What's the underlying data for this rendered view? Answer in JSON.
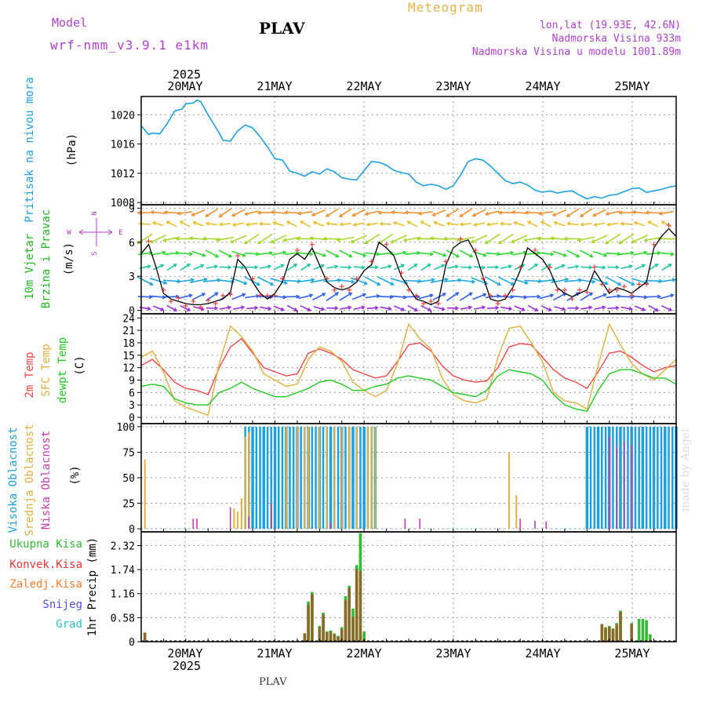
{
  "header": {
    "model_label": "Model",
    "model_run": "wrf-nmm_v3.9.1 e1km",
    "station": "PLAV",
    "app_title": "Meteogram",
    "lonlat": "lon,lat (19.93E, 42.6N)",
    "elevation": "Nadmorska Visina 933m",
    "elevation_model": "Nadmorska Visina u modelu 1001.89m"
  },
  "footer": {
    "station": "PLAV"
  },
  "credit": "made by Angel",
  "colors": {
    "pressure": "#1ea0e0",
    "wind_label": "#22b422",
    "temp2m": "#f04848",
    "sfc_temp": "#e0b040",
    "dewpt": "#22c822",
    "cloud_high": "#1ea0e0",
    "cloud_mid": "#e0b040",
    "cloud_low": "#c83cb4",
    "precip_total": "#33bb33",
    "precip_conv": "#ee3333",
    "precip_frz": "#f08030",
    "snow": "#5050e0",
    "hail": "#30c0c0",
    "axis_magenta": "#b040d0"
  },
  "time_axis": {
    "top_year": "2025",
    "bottom_year": "2025",
    "days": [
      "20MAY",
      "21MAY",
      "22MAY",
      "23MAY",
      "24MAY",
      "25MAY"
    ]
  },
  "chart_data": [
    {
      "id": "pressure",
      "type": "line",
      "ylabel": "Pritisak na nivou mora",
      "unit": "(hPa)",
      "yticks": [
        1008,
        1012,
        1016,
        1020
      ],
      "ylim": [
        1007.7,
        1022.5
      ],
      "x": [
        0,
        2,
        3,
        5,
        7,
        9,
        11,
        12,
        14,
        15,
        16,
        18,
        21,
        22,
        24,
        26,
        28,
        30,
        32,
        34,
        36,
        38,
        40,
        42,
        44,
        46,
        48,
        50,
        52,
        54,
        56,
        58,
        60,
        62,
        64,
        66,
        68,
        70,
        72,
        74,
        76,
        78,
        80,
        82,
        84,
        86,
        88,
        90,
        92,
        94,
        96,
        98,
        100,
        102,
        104,
        106,
        108,
        110,
        112,
        114,
        116,
        118,
        120,
        122,
        124,
        126,
        128,
        130,
        132,
        134,
        136,
        138,
        140,
        142,
        144
      ],
      "values": [
        1018.5,
        1017.3,
        1017.5,
        1017.4,
        1018.8,
        1020.5,
        1020.8,
        1021.5,
        1021.6,
        1022.0,
        1021.8,
        1020.0,
        1017.5,
        1016.5,
        1016.4,
        1017.8,
        1018.6,
        1018.2,
        1017.0,
        1015.6,
        1014.0,
        1013.8,
        1012.3,
        1012.0,
        1011.6,
        1012.2,
        1011.9,
        1012.6,
        1012.2,
        1011.4,
        1011.2,
        1011.1,
        1012.4,
        1013.6,
        1013.5,
        1013.1,
        1012.4,
        1012.1,
        1011.9,
        1010.8,
        1010.3,
        1010.5,
        1010.3,
        1009.8,
        1010.3,
        1011.8,
        1013.6,
        1014.0,
        1013.8,
        1013.0,
        1012.0,
        1011.0,
        1010.6,
        1010.8,
        1010.4,
        1009.7,
        1009.4,
        1009.6,
        1009.3,
        1009.5,
        1009.6,
        1009.0,
        1008.5,
        1008.8,
        1008.6,
        1009.0,
        1009.1,
        1009.5,
        1009.9,
        1010.0,
        1009.4,
        1009.6,
        1009.8,
        1010.1,
        1010.3
      ]
    },
    {
      "id": "wind",
      "type": "line",
      "ylabel_1": "10m Vjetar",
      "ylabel_2": "Brzina i Pravac",
      "unit": "(m/s)",
      "compass": [
        "N",
        "S",
        "W",
        "E"
      ],
      "yticks": [
        0,
        3,
        6,
        9
      ],
      "ylim": [
        -0.3,
        9.3
      ],
      "x": [
        0,
        2,
        4,
        6,
        8,
        10,
        12,
        14,
        16,
        18,
        20,
        22,
        24,
        26,
        28,
        30,
        32,
        34,
        36,
        38,
        40,
        42,
        44,
        46,
        48,
        50,
        52,
        54,
        56,
        58,
        60,
        62,
        64,
        66,
        68,
        70,
        72,
        74,
        76,
        78,
        80,
        82,
        84,
        86,
        88,
        90,
        92,
        94,
        96,
        98,
        100,
        102,
        104,
        106,
        108,
        110,
        112,
        114,
        116,
        118,
        120,
        122,
        124,
        126,
        128,
        130,
        132,
        134,
        136,
        138,
        140,
        142,
        144
      ],
      "speed": [
        5.0,
        5.8,
        3.8,
        1.5,
        1.0,
        0.8,
        0.6,
        0.5,
        0.5,
        0.6,
        0.8,
        1.0,
        1.6,
        4.5,
        3.8,
        2.5,
        1.5,
        1.0,
        1.5,
        2.5,
        4.5,
        5.0,
        4.5,
        5.5,
        4.0,
        2.5,
        2.0,
        1.8,
        2.0,
        2.5,
        3.5,
        4.0,
        6.0,
        5.5,
        4.8,
        3.0,
        2.0,
        1.0,
        0.8,
        0.5,
        0.8,
        4.0,
        5.5,
        6.0,
        6.2,
        5.0,
        3.0,
        1.0,
        0.8,
        1.0,
        2.0,
        3.5,
        5.5,
        5.0,
        4.5,
        3.5,
        2.0,
        1.5,
        1.2,
        1.5,
        1.8,
        3.5,
        2.5,
        1.5,
        2.0,
        1.8,
        1.5,
        2.0,
        2.5,
        5.5,
        6.5,
        7.2,
        6.5
      ]
    },
    {
      "id": "temperature",
      "type": "line",
      "ylabel_1": "2m Temp",
      "ylabel_2": "SFC Temp",
      "ylabel_3": "dewpt Temp",
      "unit": "(C)",
      "yticks": [
        0,
        3,
        6,
        9,
        12,
        15,
        18,
        21,
        24
      ],
      "ylim": [
        -1.5,
        25
      ],
      "x": [
        0,
        3,
        6,
        9,
        12,
        15,
        18,
        21,
        24,
        27,
        30,
        33,
        36,
        39,
        42,
        45,
        48,
        51,
        54,
        57,
        60,
        63,
        66,
        69,
        72,
        75,
        78,
        81,
        84,
        87,
        90,
        93,
        96,
        99,
        102,
        105,
        108,
        111,
        114,
        117,
        120,
        123,
        126,
        129,
        132,
        135,
        138,
        141,
        144
      ],
      "series": [
        {
          "name": "2m Temp",
          "values": [
            12.5,
            14.0,
            11.5,
            8.5,
            7.0,
            6.5,
            5.5,
            12.0,
            17.0,
            19.0,
            15.5,
            12.0,
            11.0,
            10.0,
            10.5,
            15.5,
            16.5,
            15.5,
            14.0,
            11.5,
            10.5,
            9.5,
            10.0,
            13.5,
            17.5,
            18.0,
            16.0,
            12.5,
            10.0,
            9.0,
            8.5,
            8.8,
            12.0,
            17.0,
            17.8,
            17.5,
            14.5,
            11.5,
            9.5,
            8.5,
            7.0,
            11.0,
            15.5,
            16.0,
            14.5,
            12.5,
            11.0,
            12.0,
            12.5
          ]
        },
        {
          "name": "SFC Temp",
          "values": [
            14.5,
            16.0,
            11.0,
            4.0,
            2.5,
            1.5,
            0.5,
            13.0,
            22.0,
            19.5,
            16.0,
            10.5,
            9.0,
            7.5,
            8.0,
            14.0,
            17.0,
            16.0,
            13.5,
            8.5,
            6.5,
            5.0,
            6.5,
            13.0,
            22.5,
            19.0,
            16.5,
            9.5,
            5.5,
            4.0,
            3.5,
            4.5,
            14.5,
            21.5,
            22.0,
            18.0,
            13.5,
            6.0,
            4.0,
            3.5,
            2.0,
            12.5,
            22.5,
            17.5,
            13.0,
            10.5,
            9.0,
            11.5,
            14.0
          ]
        },
        {
          "name": "dewpt Temp",
          "values": [
            7.5,
            8.0,
            7.5,
            4.5,
            3.5,
            3.0,
            3.0,
            6.0,
            7.0,
            8.5,
            7.0,
            6.0,
            5.0,
            5.0,
            6.0,
            7.0,
            8.5,
            9.0,
            8.0,
            6.5,
            6.5,
            7.5,
            8.0,
            9.5,
            10.0,
            9.5,
            9.0,
            7.5,
            6.0,
            5.5,
            5.0,
            6.5,
            10.0,
            11.5,
            11.0,
            10.5,
            9.0,
            5.5,
            3.0,
            2.0,
            1.5,
            6.5,
            10.5,
            11.5,
            11.5,
            10.5,
            9.5,
            9.5,
            8.0
          ]
        }
      ]
    },
    {
      "id": "cloud",
      "type": "bar",
      "ylabel_1": "Visoka Oblacnost",
      "ylabel_2": "Srednja Oblacnost",
      "ylabel_3": "Niska Oblacnost",
      "unit": "(%)",
      "yticks": [
        0,
        25,
        50,
        75,
        100
      ],
      "ylim": [
        -3,
        103
      ],
      "high_full_ranges": [
        [
          28,
          63
        ],
        [
          120,
          144
        ]
      ],
      "mid_x": [
        1,
        25,
        26,
        27,
        28,
        29,
        39,
        42,
        44,
        45,
        48,
        50,
        52,
        54,
        56,
        58,
        61,
        62,
        63,
        99,
        101
      ],
      "mid_values": [
        68,
        20,
        17,
        30,
        90,
        95,
        100,
        100,
        100,
        100,
        100,
        100,
        100,
        100,
        100,
        100,
        100,
        100,
        100,
        75,
        33
      ],
      "low_x": [
        14,
        15,
        24,
        29,
        35,
        51,
        71,
        75,
        102,
        106,
        109,
        126,
        128,
        130,
        132
      ],
      "low_values": [
        10,
        10,
        21,
        12,
        25,
        6,
        10,
        10,
        10,
        8,
        7,
        90,
        80,
        86,
        82
      ]
    },
    {
      "id": "precip",
      "type": "bar",
      "ylabel_1": "Ukupna Kisa",
      "ylabel_2": "Konvek.Kisa",
      "ylabel_3": "Zaledj.Kisa",
      "ylabel_4": "Snijeg",
      "ylabel_5": "Grad",
      "unit": "1hr Precip (mm)",
      "yticks": [
        0,
        0.58,
        1.16,
        1.74,
        2.32
      ],
      "ylim": [
        0,
        2.65
      ],
      "x": [
        1,
        44,
        45,
        46,
        48,
        49,
        50,
        51,
        52,
        53,
        54,
        55,
        56,
        57,
        58,
        59,
        60,
        61,
        62,
        124,
        125,
        126,
        127,
        128,
        129,
        132,
        134,
        135,
        136,
        137
      ],
      "total": [
        0.22,
        0.2,
        0.97,
        1.2,
        0.38,
        0.7,
        0.25,
        0.27,
        0.2,
        0.14,
        0.35,
        1.1,
        1.35,
        0.8,
        1.85,
        2.62,
        0.24,
        0.0,
        0.0,
        0.43,
        0.35,
        0.38,
        0.32,
        0.45,
        0.75,
        0.45,
        0.55,
        0.55,
        0.52,
        0.18
      ],
      "convective": [
        0.22,
        0.2,
        0.9,
        1.15,
        0.35,
        0.65,
        0.22,
        0.25,
        0.18,
        0.12,
        0.3,
        1.0,
        1.3,
        0.6,
        1.75,
        1.7,
        0.05,
        0.0,
        0.0,
        0.42,
        0.33,
        0.36,
        0.3,
        0.42,
        0.72,
        0.42,
        0.0,
        0.0,
        0.0,
        0.05
      ]
    }
  ]
}
